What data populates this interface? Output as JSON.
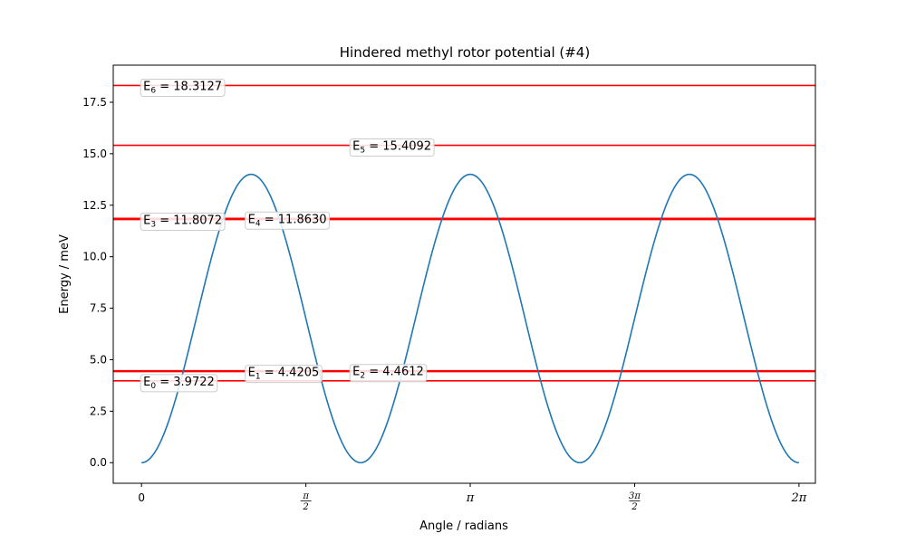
{
  "chart_data": {
    "type": "line",
    "title": "Hindered methyl rotor potential (#4)",
    "xlabel": "Angle / radians",
    "ylabel": "Energy / meV",
    "xlim": [
      -0.27,
      6.44
    ],
    "ylim": [
      -1.0,
      19.3
    ],
    "yticks": [
      "0.0",
      "2.5",
      "5.0",
      "7.5",
      "10.0",
      "12.5",
      "15.0",
      "17.5"
    ],
    "ytick_values": [
      0,
      2.5,
      5,
      7.5,
      10,
      12.5,
      15,
      17.5
    ],
    "xticks": [
      {
        "value": 0,
        "label": "0"
      },
      {
        "value": 1.5708,
        "label": "π/2"
      },
      {
        "value": 3.1416,
        "label": "π"
      },
      {
        "value": 4.7124,
        "label": "3π/2"
      },
      {
        "value": 6.2832,
        "label": "2π"
      }
    ],
    "potential": {
      "name": "",
      "color": "#1f77b4",
      "V3": 14.0,
      "offset_deg": 0,
      "x_range": [
        0,
        6.2832
      ]
    },
    "levels": [
      {
        "symbol": "E",
        "index": "0",
        "value": 3.9722,
        "text": " = 3.9722",
        "label_x": 0.0
      },
      {
        "symbol": "E",
        "index": "1",
        "value": 4.4205,
        "text": " = 4.4205",
        "label_x": 1.0
      },
      {
        "symbol": "E",
        "index": "2",
        "value": 4.4612,
        "text": " = 4.4612",
        "label_x": 2.0
      },
      {
        "symbol": "E",
        "index": "3",
        "value": 11.8072,
        "text": " = 11.8072",
        "label_x": 0.0
      },
      {
        "symbol": "E",
        "index": "4",
        "value": 11.863,
        "text": " = 11.8630",
        "label_x": 1.0
      },
      {
        "symbol": "E",
        "index": "5",
        "value": 15.4092,
        "text": " = 15.4092",
        "label_x": 2.0
      },
      {
        "symbol": "E",
        "index": "6",
        "value": 18.3127,
        "text": " = 18.3127",
        "label_x": 0.0
      }
    ],
    "level_color": "#ff0000",
    "grid": false
  }
}
